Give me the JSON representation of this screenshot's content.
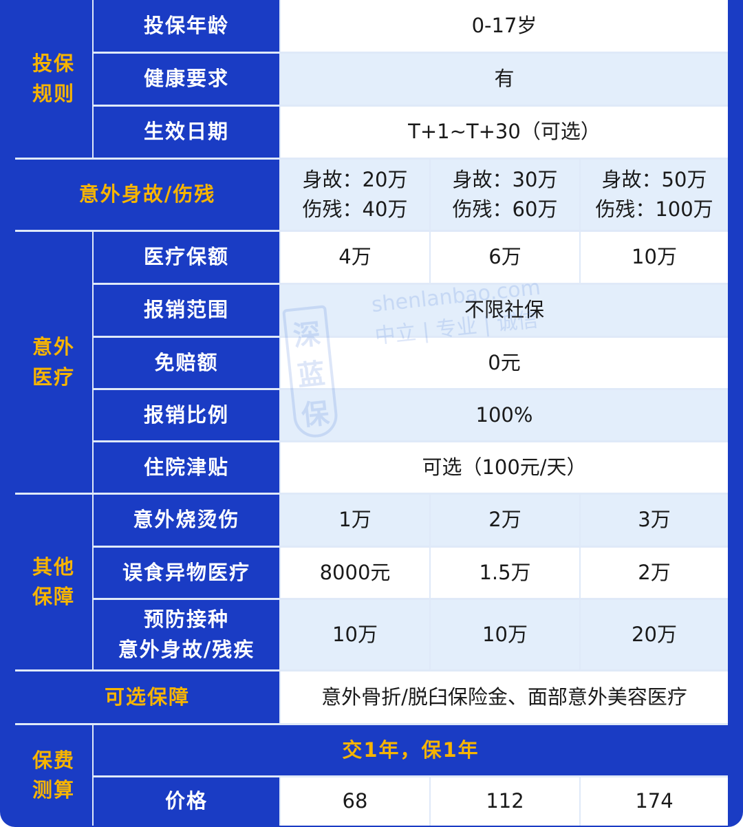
{
  "colors": {
    "header_blue": "#1a3cc4",
    "group_text": "#f7b400",
    "light_row": "#e3eefb"
  },
  "watermark": {
    "logo": "深蓝保",
    "site": "shenlanbao.com",
    "slogan": "中立 | 专业 | 诚信"
  },
  "groups": {
    "rules": "投保\n规则",
    "accident_medical": "意外\n医疗",
    "other": "其他\n保障",
    "premium": "保费\n测算"
  },
  "rows": {
    "age": {
      "label": "投保年龄",
      "value": "0-17岁"
    },
    "health": {
      "label": "健康要求",
      "value": "有"
    },
    "effective": {
      "label": "生效日期",
      "value": "T+1~T+30（可选）"
    },
    "death": {
      "label": "意外身故/伤残",
      "values": [
        [
          "身故：20万",
          "伤残：40万"
        ],
        [
          "身故：30万",
          "伤残：60万"
        ],
        [
          "身故：50万",
          "伤残：100万"
        ]
      ]
    },
    "medical_amount": {
      "label": "医疗保额",
      "values": [
        "4万",
        "6万",
        "10万"
      ]
    },
    "scope": {
      "label": "报销范围",
      "value": "不限社保"
    },
    "deductible": {
      "label": "免赔额",
      "value": "0元"
    },
    "ratio": {
      "label": "报销比例",
      "value": "100%"
    },
    "hospital": {
      "label": "住院津贴",
      "value": "可选（100元/天）"
    },
    "burn": {
      "label": "意外烧烫伤",
      "values": [
        "1万",
        "2万",
        "3万"
      ]
    },
    "ingestion": {
      "label": "误食异物医疗",
      "values": [
        "8000元",
        "1.5万",
        "2万"
      ]
    },
    "vaccine": {
      "label": "预防接种\n意外身故/残疾",
      "values": [
        "10万",
        "10万",
        "20万"
      ]
    },
    "optional": {
      "label": "可选保障",
      "value": "意外骨折/脱臼保险金、面部意外美容医疗"
    },
    "term": {
      "label": "交1年，保1年"
    },
    "price": {
      "label": "价格",
      "values": [
        "68",
        "112",
        "174"
      ]
    }
  }
}
